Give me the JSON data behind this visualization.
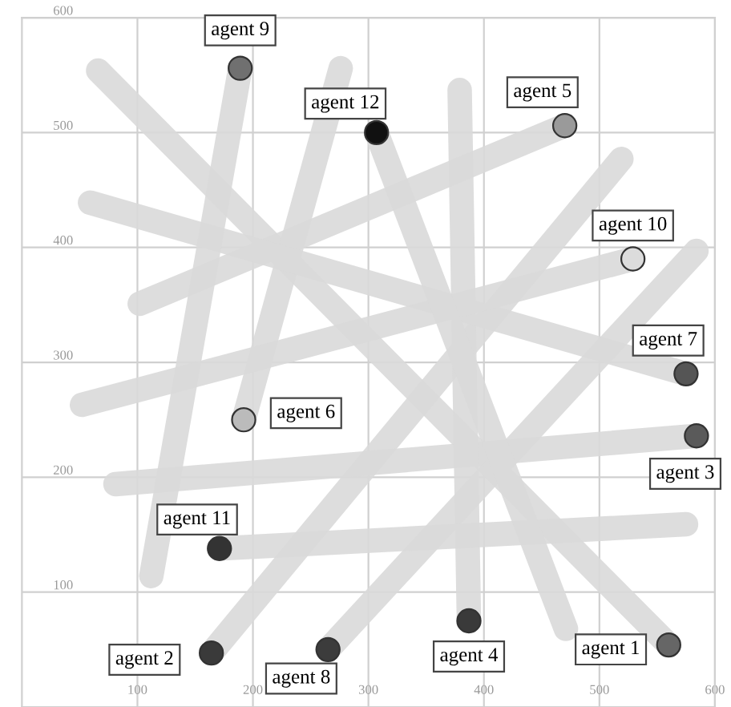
{
  "chart_data": {
    "type": "line",
    "xlim": [
      0,
      600
    ],
    "ylim": [
      0,
      600
    ],
    "xticks": [
      100,
      200,
      300,
      400,
      500,
      600
    ],
    "yticks": [
      100,
      200,
      300,
      400,
      500,
      600
    ],
    "grid": true,
    "legend": false,
    "marker": "circle",
    "line_style": "solid",
    "series": [
      {
        "name": "agent 1",
        "color": "#d9d9d9",
        "x": [
          66,
          560
        ],
        "values": [
          554,
          54
        ],
        "colors": [
          null,
          "#666666"
        ]
      },
      {
        "name": "agent 2",
        "color": "#d9d9d9",
        "x": [
          519,
          164
        ],
        "values": [
          477,
          47
        ],
        "colors": [
          null,
          "#3a3a3a"
        ]
      },
      {
        "name": "agent 3",
        "color": "#d9d9d9",
        "x": [
          81,
          584
        ],
        "values": [
          194,
          236
        ],
        "colors": [
          null,
          "#5a5a5a"
        ]
      },
      {
        "name": "agent 4",
        "color": "#d9d9d9",
        "x": [
          379,
          387
        ],
        "values": [
          537,
          75
        ],
        "colors": [
          null,
          "#3a3a3a"
        ]
      },
      {
        "name": "agent 5",
        "color": "#d9d9d9",
        "x": [
          102,
          470
        ],
        "values": [
          351,
          506
        ],
        "colors": [
          null,
          "#9a9a9a"
        ]
      },
      {
        "name": "agent 6",
        "color": "#d9d9d9",
        "x": [
          276,
          192
        ],
        "values": [
          556,
          250
        ],
        "colors": [
          null,
          "#bbbbbb"
        ]
      },
      {
        "name": "agent 7",
        "color": "#d9d9d9",
        "x": [
          59,
          575
        ],
        "values": [
          439,
          290
        ],
        "colors": [
          null,
          "#555555"
        ]
      },
      {
        "name": "agent 8",
        "color": "#d9d9d9",
        "x": [
          584,
          265
        ],
        "values": [
          397,
          50
        ],
        "colors": [
          null,
          "#3c3c3c"
        ]
      },
      {
        "name": "agent 9",
        "color": "#d9d9d9",
        "x": [
          112,
          189
        ],
        "values": [
          114,
          556
        ],
        "colors": [
          null,
          "#707070"
        ]
      },
      {
        "name": "agent 10",
        "color": "#d9d9d9",
        "x": [
          52,
          529
        ],
        "values": [
          263,
          390
        ],
        "colors": [
          null,
          "#dcdcdc"
        ]
      },
      {
        "name": "agent 11",
        "color": "#d9d9d9",
        "x": [
          575,
          171
        ],
        "values": [
          159,
          138
        ],
        "colors": [
          null,
          "#333333"
        ]
      },
      {
        "name": "agent 12",
        "color": "#d9d9d9",
        "x": [
          471,
          307
        ],
        "values": [
          68,
          500
        ],
        "colors": [
          null,
          "#111111"
        ]
      }
    ]
  }
}
